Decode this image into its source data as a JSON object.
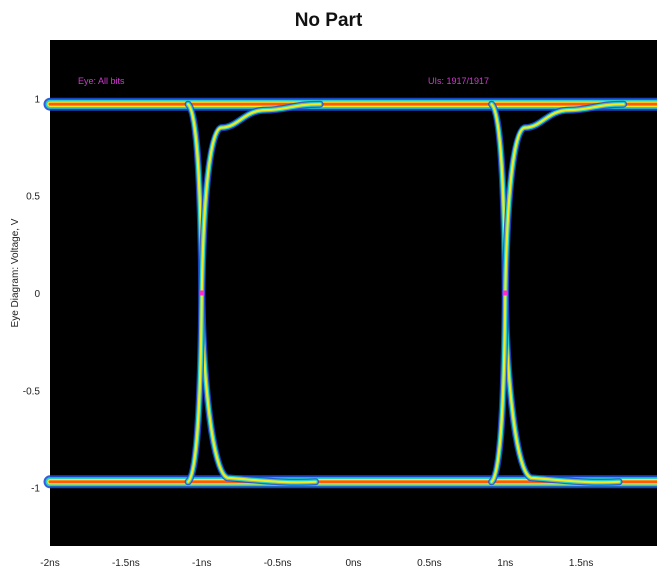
{
  "chart_data": {
    "type": "eye diagram",
    "title": "No Part",
    "ylabel": "Eye Diagram: Voltage, V",
    "xlabel": "",
    "annotations": {
      "left": "Eye: All bits",
      "right": "UIs: 1917/1917"
    },
    "xlim": [
      -2.0,
      2.0
    ],
    "ylim": [
      -1.3,
      1.3
    ],
    "xticks": [
      {
        "value": -2.0,
        "label": "-2ns"
      },
      {
        "value": -1.5,
        "label": "-1.5ns"
      },
      {
        "value": -1.0,
        "label": "-1ns"
      },
      {
        "value": -0.5,
        "label": "-0.5ns"
      },
      {
        "value": 0.0,
        "label": "0ns"
      },
      {
        "value": 0.5,
        "label": "0.5ns"
      },
      {
        "value": 1.0,
        "label": "1ns"
      },
      {
        "value": 1.5,
        "label": "1.5ns"
      }
    ],
    "yticks": [
      {
        "value": 1,
        "label": "1"
      },
      {
        "value": 0.5,
        "label": "0.5"
      },
      {
        "value": 0,
        "label": "0"
      },
      {
        "value": -0.5,
        "label": "-0.5"
      },
      {
        "value": -1,
        "label": "-1"
      }
    ],
    "levels": {
      "high": 0.97,
      "low": -0.97
    },
    "crossings": [
      {
        "x": -1.0,
        "y": 0.0
      },
      {
        "x": 1.0,
        "y": 0.0
      }
    ],
    "background": "#000000",
    "colors": {
      "outer_halo": "#1e4bd6",
      "mid_band": "#2ad7c8",
      "inner_band": "#f4e820",
      "core": "#ff5a12",
      "annotation": "#d23ad2",
      "crossing_marker": "#ff2bd0"
    },
    "grid": false
  }
}
